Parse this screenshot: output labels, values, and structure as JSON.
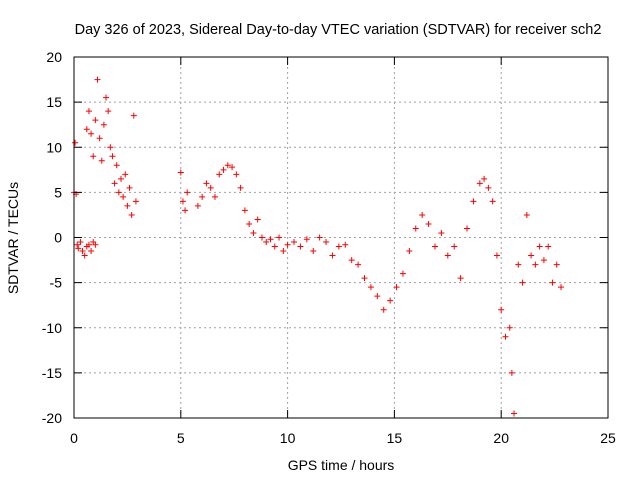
{
  "chart_data": {
    "type": "scatter",
    "title": "Day 326 of 2023, Sidereal Day-to-day VTEC variation (SDTVAR) for receiver sch2",
    "xlabel": "GPS time / hours",
    "ylabel": "SDTVAR / TECUs",
    "xlim": [
      0,
      25
    ],
    "ylim": [
      -20,
      20
    ],
    "xticks": [
      0,
      5,
      10,
      15,
      20,
      25
    ],
    "yticks": [
      -20,
      -15,
      -10,
      -5,
      0,
      5,
      10,
      15,
      20
    ],
    "xtick_labels": [
      "0",
      "5",
      "10",
      "15",
      "20",
      "25"
    ],
    "ytick_labels": [
      "-20",
      "-15",
      "-10",
      "-5",
      "0",
      "5",
      "10",
      "15",
      "20"
    ],
    "grid": true,
    "marker": "+",
    "series_color": "#ff0000",
    "series": [
      {
        "name": "sch2",
        "x": [
          0.0,
          0.05,
          0.1,
          0.15,
          0.2,
          0.3,
          0.4,
          0.5,
          0.6,
          0.7,
          0.8,
          0.9,
          1.0,
          0.6,
          0.7,
          0.8,
          0.9,
          1.0,
          1.1,
          1.2,
          1.3,
          1.4,
          1.5,
          1.6,
          1.7,
          1.8,
          1.9,
          2.0,
          2.1,
          2.2,
          2.3,
          2.4,
          2.5,
          2.6,
          2.7,
          2.8,
          2.9,
          5.0,
          5.1,
          5.2,
          5.3,
          5.8,
          6.0,
          6.2,
          6.4,
          6.6,
          6.8,
          7.0,
          7.2,
          7.4,
          7.6,
          7.8,
          8.0,
          8.2,
          8.4,
          8.6,
          8.8,
          9.0,
          9.2,
          9.4,
          9.6,
          9.8,
          10.0,
          10.3,
          10.6,
          10.9,
          11.2,
          11.5,
          11.8,
          12.1,
          12.4,
          12.7,
          13.0,
          13.3,
          13.6,
          13.9,
          14.2,
          14.5,
          14.8,
          15.1,
          15.4,
          15.7,
          16.0,
          16.3,
          16.6,
          16.9,
          17.2,
          17.5,
          17.8,
          18.1,
          18.4,
          18.7,
          19.0,
          19.2,
          19.4,
          19.6,
          19.8,
          20.0,
          20.2,
          20.4,
          20.5,
          20.6,
          20.8,
          21.0,
          21.2,
          21.4,
          21.6,
          21.8,
          22.0,
          22.2,
          22.4,
          22.6,
          22.8
        ],
        "y": [
          5.0,
          10.5,
          4.8,
          -0.8,
          -1.2,
          -0.5,
          -1.5,
          -2.0,
          -1.0,
          -0.8,
          -1.5,
          -0.5,
          -0.8,
          12.0,
          14.0,
          11.5,
          9.0,
          13.0,
          17.5,
          11.0,
          8.5,
          12.5,
          15.5,
          14.0,
          10.0,
          9.0,
          6.0,
          8.0,
          5.0,
          6.5,
          4.5,
          7.0,
          3.5,
          5.5,
          2.5,
          13.5,
          4.0,
          7.2,
          4.0,
          3.0,
          5.0,
          3.5,
          4.5,
          6.0,
          5.5,
          4.5,
          7.0,
          7.5,
          8.0,
          7.8,
          7.0,
          5.5,
          3.0,
          1.5,
          0.5,
          2.0,
          0.0,
          -0.5,
          -0.2,
          -1.0,
          0.0,
          -1.5,
          -0.8,
          -0.5,
          -1.0,
          -0.2,
          -1.5,
          0.0,
          -0.5,
          -2.0,
          -1.0,
          -0.8,
          -2.5,
          -3.0,
          -4.5,
          -5.5,
          -6.5,
          -8.0,
          -7.0,
          -5.5,
          -4.0,
          -1.5,
          1.0,
          2.5,
          1.5,
          -1.0,
          0.5,
          -2.0,
          -1.0,
          -4.5,
          1.0,
          4.0,
          6.0,
          6.5,
          5.5,
          4.0,
          -2.0,
          -8.0,
          -11.0,
          -10.0,
          -15.0,
          -19.5,
          -3.0,
          -5.0,
          2.5,
          -2.0,
          -3.0,
          -1.0,
          -2.5,
          -1.0,
          -5.0,
          -3.0,
          -5.5
        ]
      }
    ]
  }
}
